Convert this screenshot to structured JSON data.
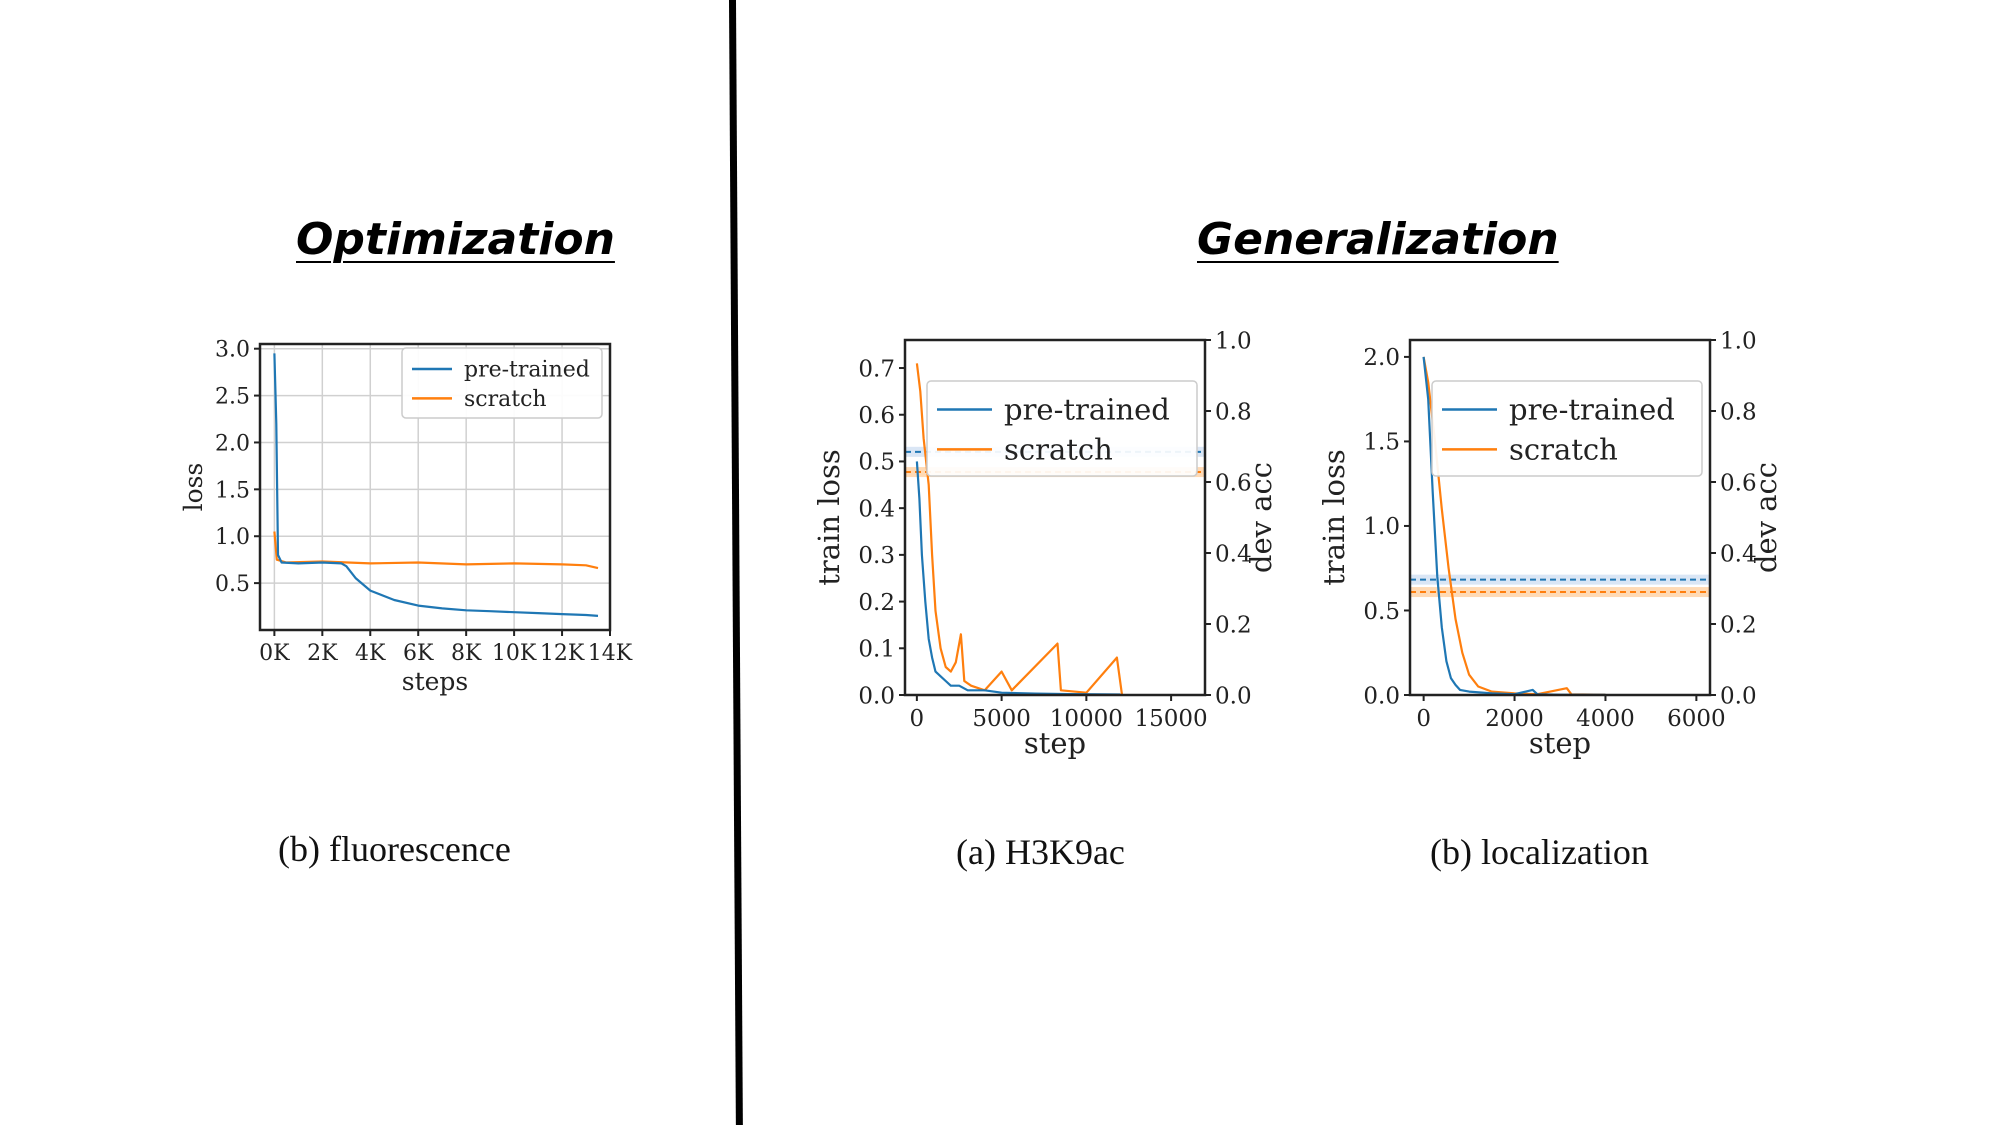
{
  "headings": {
    "left": "Optimization",
    "right": "Generalization"
  },
  "captions": {
    "fluorescence": "(b) fluorescence",
    "h3k9ac": "(a) H3K9ac",
    "localization": "(b) localization"
  },
  "colors": {
    "pretrained": "#1f77b4",
    "scratch": "#ff7f0e",
    "pretrained_band": "#aec7e8",
    "scratch_band": "#ffbb78"
  },
  "chart_data": [
    {
      "id": "fluorescence",
      "type": "line",
      "title": "",
      "xlabel": "steps",
      "ylabel": "loss",
      "xlim": [
        -600,
        14000
      ],
      "ylim": [
        0.0,
        3.05
      ],
      "xticks": [
        0,
        2000,
        4000,
        6000,
        8000,
        10000,
        12000,
        14000
      ],
      "xtick_labels": [
        "0K",
        "2K",
        "4K",
        "6K",
        "8K",
        "10K",
        "12K",
        "14K"
      ],
      "yticks": [
        0.5,
        1.0,
        1.5,
        2.0,
        2.5,
        3.0
      ],
      "ytick_labels": [
        "0.5",
        "1.0",
        "1.5",
        "2.0",
        "2.5",
        "3.0"
      ],
      "grid": true,
      "legend": {
        "position": "top-right",
        "entries": [
          "pre-trained",
          "scratch"
        ]
      },
      "series": [
        {
          "name": "pre-trained",
          "points": [
            [
              0,
              2.95
            ],
            [
              80,
              2.2
            ],
            [
              150,
              0.8
            ],
            [
              300,
              0.72
            ],
            [
              1000,
              0.71
            ],
            [
              2000,
              0.72
            ],
            [
              2800,
              0.71
            ],
            [
              3000,
              0.68
            ],
            [
              3400,
              0.55
            ],
            [
              4000,
              0.42
            ],
            [
              5000,
              0.32
            ],
            [
              6000,
              0.26
            ],
            [
              7000,
              0.23
            ],
            [
              8000,
              0.21
            ],
            [
              9000,
              0.2
            ],
            [
              10000,
              0.19
            ],
            [
              11000,
              0.18
            ],
            [
              12000,
              0.17
            ],
            [
              13000,
              0.16
            ],
            [
              13500,
              0.15
            ]
          ]
        },
        {
          "name": "scratch",
          "points": [
            [
              0,
              1.05
            ],
            [
              100,
              0.75
            ],
            [
              500,
              0.72
            ],
            [
              2000,
              0.73
            ],
            [
              4000,
              0.71
            ],
            [
              6000,
              0.72
            ],
            [
              8000,
              0.7
            ],
            [
              10000,
              0.71
            ],
            [
              12000,
              0.7
            ],
            [
              13000,
              0.69
            ],
            [
              13500,
              0.66
            ]
          ]
        }
      ]
    },
    {
      "id": "h3k9ac",
      "type": "line",
      "title": "",
      "xlabel": "step",
      "ylabel": "train loss",
      "y2label": "dev acc",
      "xlim": [
        -700,
        17000
      ],
      "ylim": [
        0.0,
        0.76
      ],
      "y2lim": [
        0.0,
        1.0
      ],
      "xticks": [
        0,
        5000,
        10000,
        15000
      ],
      "xtick_labels": [
        "0",
        "5000",
        "10000",
        "15000"
      ],
      "yticks": [
        0.0,
        0.1,
        0.2,
        0.3,
        0.4,
        0.5,
        0.6,
        0.7
      ],
      "ytick_labels": [
        "0.0",
        "0.1",
        "0.2",
        "0.3",
        "0.4",
        "0.5",
        "0.6",
        "0.7"
      ],
      "y2ticks": [
        0.0,
        0.2,
        0.4,
        0.6,
        0.8,
        1.0
      ],
      "y2tick_labels": [
        "0.0",
        "0.2",
        "0.4",
        "0.6",
        "0.8",
        "1.0"
      ],
      "grid": false,
      "legend": {
        "position": "top-right",
        "entries": [
          "pre-trained",
          "scratch"
        ]
      },
      "dev_acc": {
        "pre-trained": 0.685,
        "scratch": 0.628
      },
      "series": [
        {
          "name": "pre-trained",
          "points": [
            [
              0,
              0.5
            ],
            [
              150,
              0.42
            ],
            [
              300,
              0.3
            ],
            [
              500,
              0.2
            ],
            [
              700,
              0.12
            ],
            [
              900,
              0.08
            ],
            [
              1100,
              0.05
            ],
            [
              1400,
              0.04
            ],
            [
              1700,
              0.03
            ],
            [
              2000,
              0.02
            ],
            [
              2500,
              0.02
            ],
            [
              3000,
              0.01
            ],
            [
              4000,
              0.01
            ],
            [
              5000,
              0.005
            ],
            [
              7000,
              0.003
            ],
            [
              9000,
              0.002
            ],
            [
              12000,
              0.001
            ]
          ]
        },
        {
          "name": "scratch",
          "points": [
            [
              0,
              0.71
            ],
            [
              200,
              0.65
            ],
            [
              400,
              0.55
            ],
            [
              700,
              0.45
            ],
            [
              900,
              0.3
            ],
            [
              1100,
              0.18
            ],
            [
              1400,
              0.1
            ],
            [
              1700,
              0.06
            ],
            [
              2000,
              0.05
            ],
            [
              2300,
              0.07
            ],
            [
              2600,
              0.13
            ],
            [
              2800,
              0.03
            ],
            [
              3200,
              0.02
            ],
            [
              4000,
              0.01
            ],
            [
              5000,
              0.05
            ],
            [
              5600,
              0.01
            ],
            [
              8300,
              0.11
            ],
            [
              8500,
              0.01
            ],
            [
              10000,
              0.005
            ],
            [
              11800,
              0.08
            ],
            [
              12100,
              0.002
            ]
          ]
        }
      ]
    },
    {
      "id": "localization",
      "type": "line",
      "title": "",
      "xlabel": "step",
      "ylabel": "train loss",
      "y2label": "dev acc",
      "xlim": [
        -300,
        6300
      ],
      "ylim": [
        0.0,
        2.1
      ],
      "y2lim": [
        0.0,
        1.0
      ],
      "xticks": [
        0,
        2000,
        4000,
        6000
      ],
      "xtick_labels": [
        "0",
        "2000",
        "4000",
        "6000"
      ],
      "yticks": [
        0.0,
        0.5,
        1.0,
        1.5,
        2.0
      ],
      "ytick_labels": [
        "0.0",
        "0.5",
        "1.0",
        "1.5",
        "2.0"
      ],
      "y2ticks": [
        0.0,
        0.2,
        0.4,
        0.6,
        0.8,
        1.0
      ],
      "y2tick_labels": [
        "0.0",
        "0.2",
        "0.4",
        "0.6",
        "0.8",
        "1.0"
      ],
      "grid": false,
      "legend": {
        "position": "top-right",
        "entries": [
          "pre-trained",
          "scratch"
        ]
      },
      "dev_acc": {
        "pre-trained": 0.325,
        "scratch": 0.29
      },
      "series": [
        {
          "name": "pre-trained",
          "points": [
            [
              0,
              2.0
            ],
            [
              100,
              1.75
            ],
            [
              200,
              1.2
            ],
            [
              300,
              0.7
            ],
            [
              400,
              0.4
            ],
            [
              500,
              0.2
            ],
            [
              600,
              0.1
            ],
            [
              700,
              0.06
            ],
            [
              800,
              0.03
            ],
            [
              1000,
              0.02
            ],
            [
              1500,
              0.01
            ],
            [
              2000,
              0.005
            ],
            [
              2400,
              0.03
            ],
            [
              2500,
              0.005
            ],
            [
              3000,
              0.002
            ],
            [
              4000,
              0.001
            ]
          ]
        },
        {
          "name": "scratch",
          "points": [
            [
              0,
              2.0
            ],
            [
              100,
              1.85
            ],
            [
              250,
              1.5
            ],
            [
              400,
              1.1
            ],
            [
              550,
              0.75
            ],
            [
              700,
              0.45
            ],
            [
              850,
              0.25
            ],
            [
              1000,
              0.12
            ],
            [
              1200,
              0.05
            ],
            [
              1500,
              0.02
            ],
            [
              2000,
              0.01
            ],
            [
              2500,
              0.005
            ],
            [
              3150,
              0.04
            ],
            [
              3250,
              0.004
            ],
            [
              4000,
              0.002
            ]
          ]
        }
      ]
    }
  ]
}
